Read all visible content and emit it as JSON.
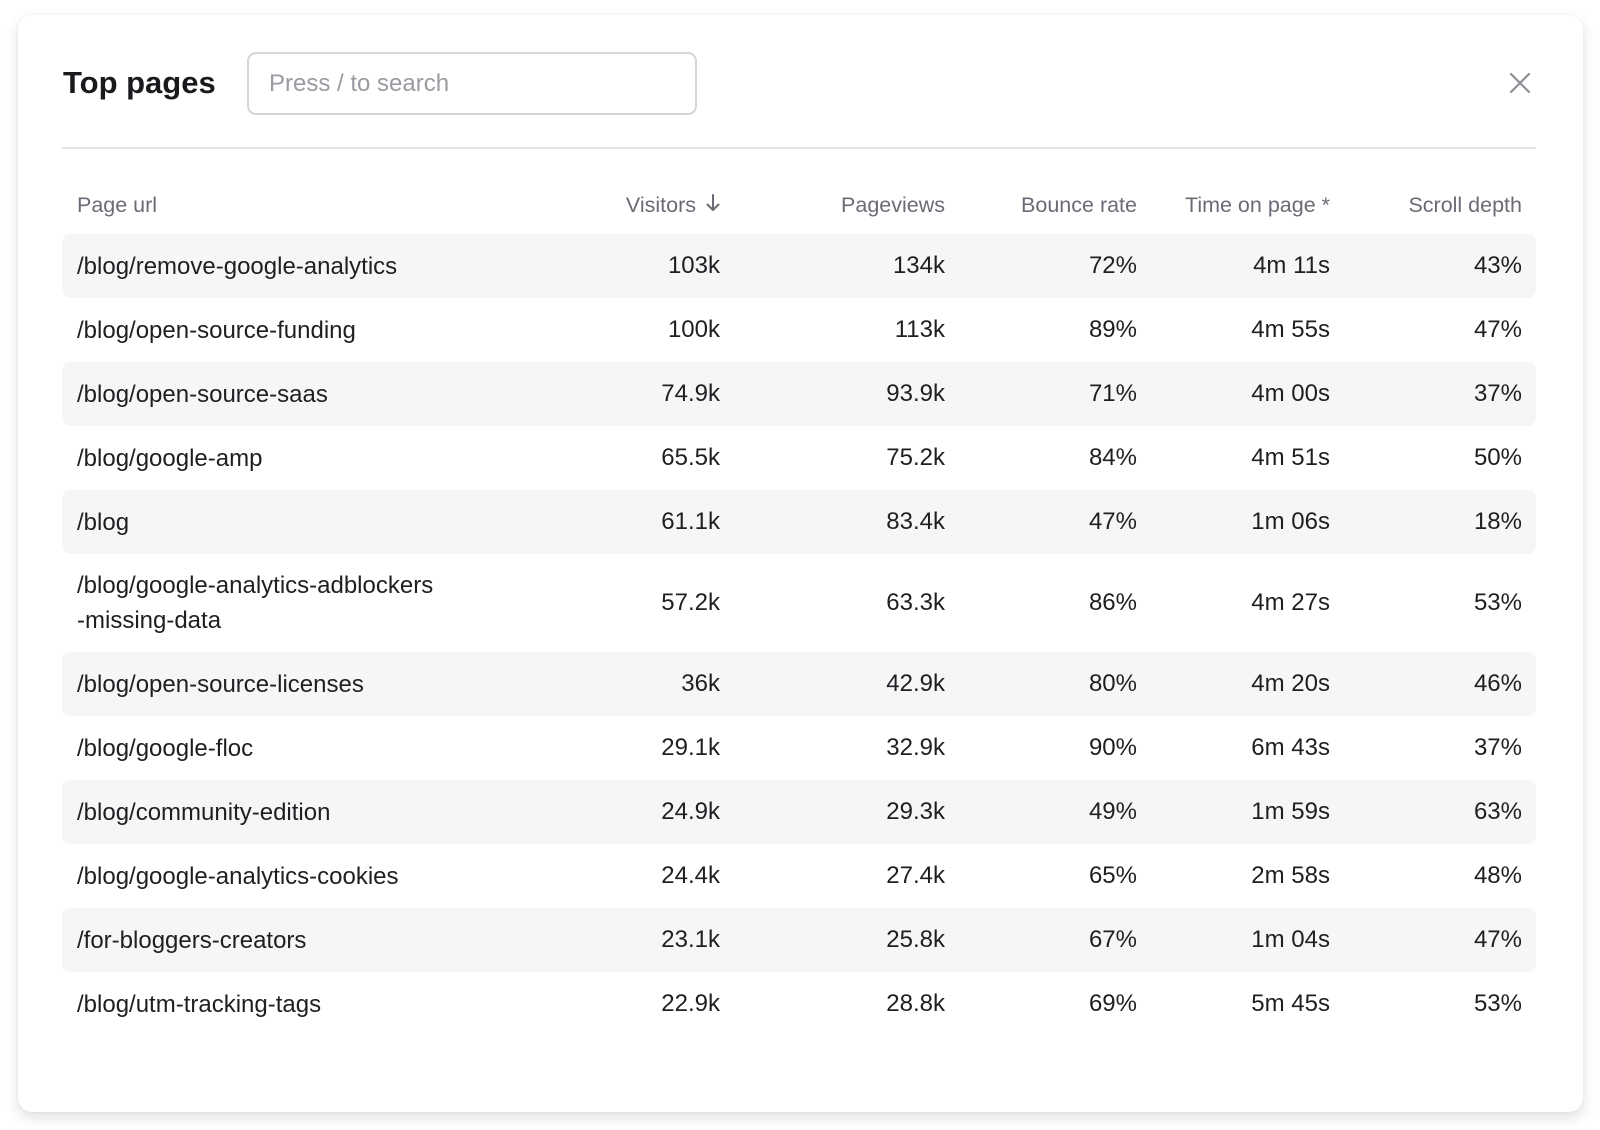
{
  "modal": {
    "title": "Top pages",
    "search_placeholder": "Press / to search",
    "close_icon": "close-icon"
  },
  "table": {
    "columns": [
      "Page url",
      "Visitors",
      "Pageviews",
      "Bounce rate",
      "Time on page *",
      "Scroll depth"
    ],
    "sorted_column": "Visitors",
    "sort_direction": "descending",
    "rows": [
      {
        "url": "/blog/remove-google-analytics",
        "visitors": "103k",
        "pageviews": "134k",
        "bounce_rate": "72%",
        "time_on_page": "4m 11s",
        "scroll_depth": "43%"
      },
      {
        "url": "/blog/open-source-funding",
        "visitors": "100k",
        "pageviews": "113k",
        "bounce_rate": "89%",
        "time_on_page": "4m 55s",
        "scroll_depth": "47%"
      },
      {
        "url": "/blog/open-source-saas",
        "visitors": "74.9k",
        "pageviews": "93.9k",
        "bounce_rate": "71%",
        "time_on_page": "4m 00s",
        "scroll_depth": "37%"
      },
      {
        "url": "/blog/google-amp",
        "visitors": "65.5k",
        "pageviews": "75.2k",
        "bounce_rate": "84%",
        "time_on_page": "4m 51s",
        "scroll_depth": "50%"
      },
      {
        "url": "/blog",
        "visitors": "61.1k",
        "pageviews": "83.4k",
        "bounce_rate": "47%",
        "time_on_page": "1m 06s",
        "scroll_depth": "18%"
      },
      {
        "url": "/blog/google-analytics-adblockers-missing-data",
        "visitors": "57.2k",
        "pageviews": "63.3k",
        "bounce_rate": "86%",
        "time_on_page": "4m 27s",
        "scroll_depth": "53%"
      },
      {
        "url": "/blog/open-source-licenses",
        "visitors": "36k",
        "pageviews": "42.9k",
        "bounce_rate": "80%",
        "time_on_page": "4m 20s",
        "scroll_depth": "46%"
      },
      {
        "url": "/blog/google-floc",
        "visitors": "29.1k",
        "pageviews": "32.9k",
        "bounce_rate": "90%",
        "time_on_page": "6m 43s",
        "scroll_depth": "37%"
      },
      {
        "url": "/blog/community-edition",
        "visitors": "24.9k",
        "pageviews": "29.3k",
        "bounce_rate": "49%",
        "time_on_page": "1m 59s",
        "scroll_depth": "63%"
      },
      {
        "url": "/blog/google-analytics-cookies",
        "visitors": "24.4k",
        "pageviews": "27.4k",
        "bounce_rate": "65%",
        "time_on_page": "2m 58s",
        "scroll_depth": "48%"
      },
      {
        "url": "/for-bloggers-creators",
        "visitors": "23.1k",
        "pageviews": "25.8k",
        "bounce_rate": "67%",
        "time_on_page": "1m 04s",
        "scroll_depth": "47%"
      },
      {
        "url": "/blog/utm-tracking-tags",
        "visitors": "22.9k",
        "pageviews": "28.8k",
        "bounce_rate": "69%",
        "time_on_page": "5m 45s",
        "scroll_depth": "53%"
      }
    ]
  },
  "colors": {
    "row_stripe": "#f6f6f7",
    "header_text": "#6b6b76",
    "text": "#1f1f23"
  }
}
